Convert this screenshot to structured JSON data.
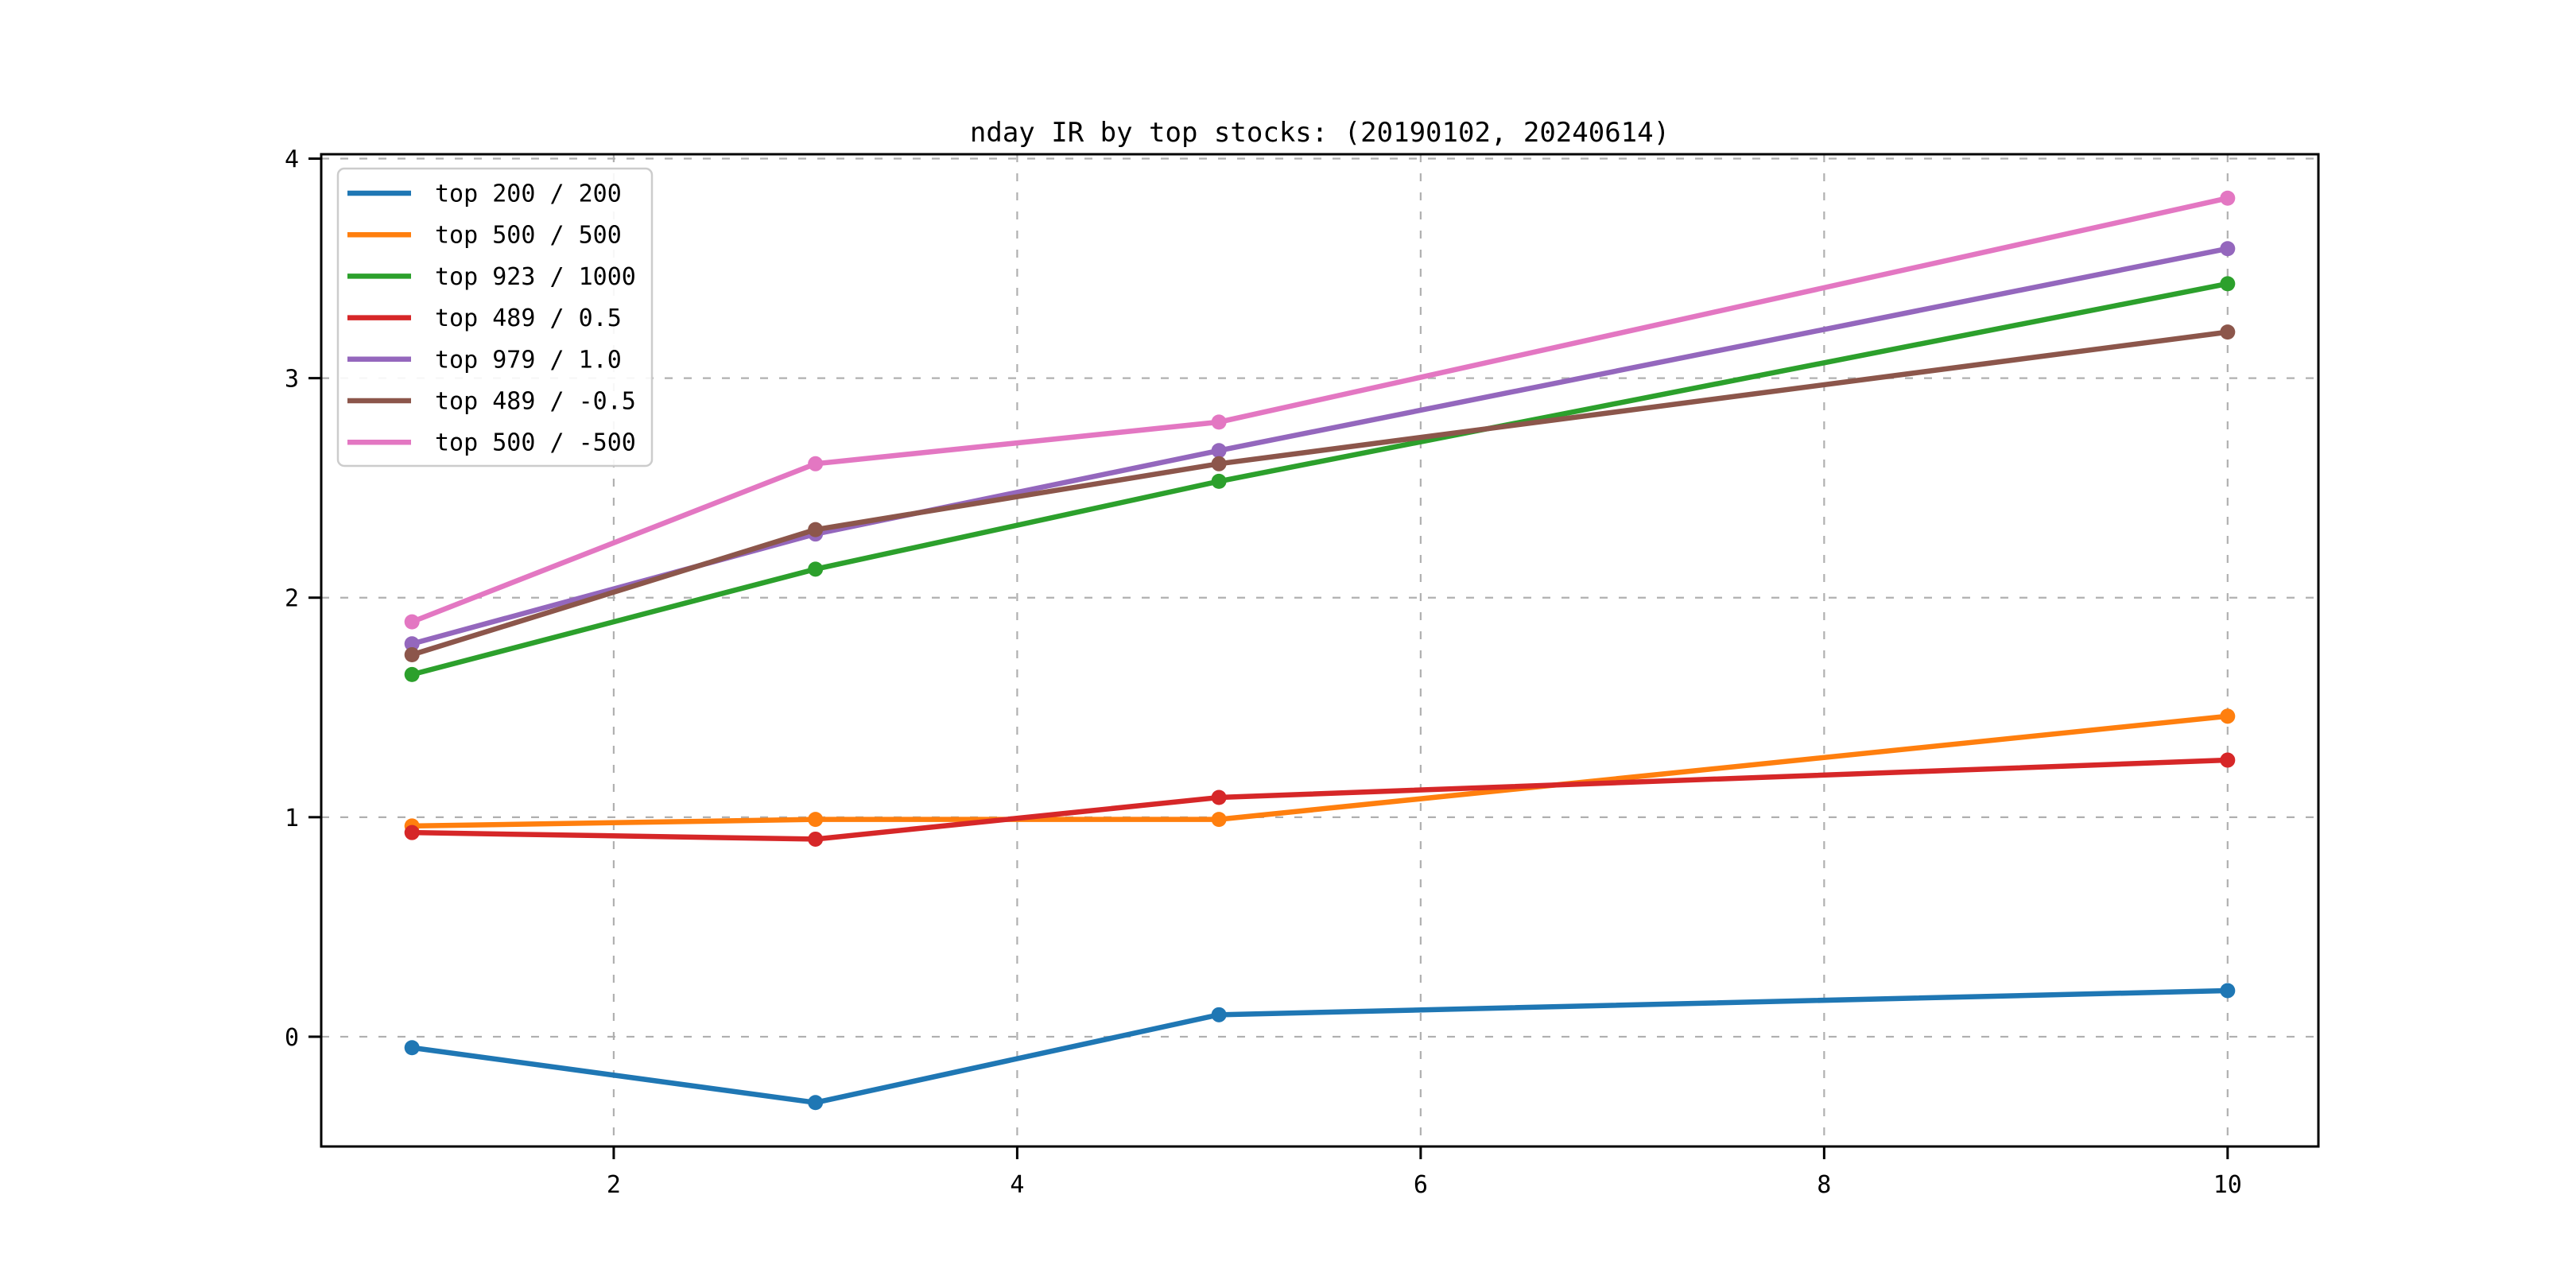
{
  "figure": {
    "background": "#ffffff",
    "spine_color": "#000000",
    "grid_color": "#b0b0b0",
    "legend_border_color": "#cccccc",
    "legend_background": "#ffffff"
  },
  "chart_data": {
    "type": "line",
    "title": "nday IR by top stocks: (20190102, 20240614)",
    "xlabel": "",
    "ylabel": "",
    "x": [
      1,
      3,
      5,
      10
    ],
    "series": [
      {
        "name": "top 200 / 200",
        "color": "#1f77b4",
        "values": [
          -0.05,
          -0.3,
          0.1,
          0.21
        ]
      },
      {
        "name": "top 500 / 500",
        "color": "#ff7f0e",
        "values": [
          0.96,
          0.99,
          0.99,
          1.46
        ]
      },
      {
        "name": "top 923 / 1000",
        "color": "#2ca02c",
        "values": [
          1.65,
          2.13,
          2.53,
          3.43
        ]
      },
      {
        "name": "top 489 / 0.5",
        "color": "#d62728",
        "values": [
          0.93,
          0.9,
          1.09,
          1.26
        ]
      },
      {
        "name": "top 979 / 1.0",
        "color": "#9467bd",
        "values": [
          1.79,
          2.29,
          2.67,
          3.59
        ]
      },
      {
        "name": "top 489 / -0.5",
        "color": "#8c564b",
        "values": [
          1.74,
          2.31,
          2.61,
          3.21
        ]
      },
      {
        "name": "top 500 / -500",
        "color": "#e377c2",
        "values": [
          1.89,
          2.61,
          2.8,
          3.82
        ]
      }
    ],
    "xticks": [
      2,
      4,
      6,
      8,
      10
    ],
    "yticks": [
      0,
      1,
      2,
      3,
      4
    ],
    "xlim": [
      0.55,
      10.45
    ],
    "ylim": [
      -0.5,
      4.02
    ],
    "grid": true,
    "grid_style": "dashed",
    "marker": "o",
    "legend_position": "upper left"
  }
}
